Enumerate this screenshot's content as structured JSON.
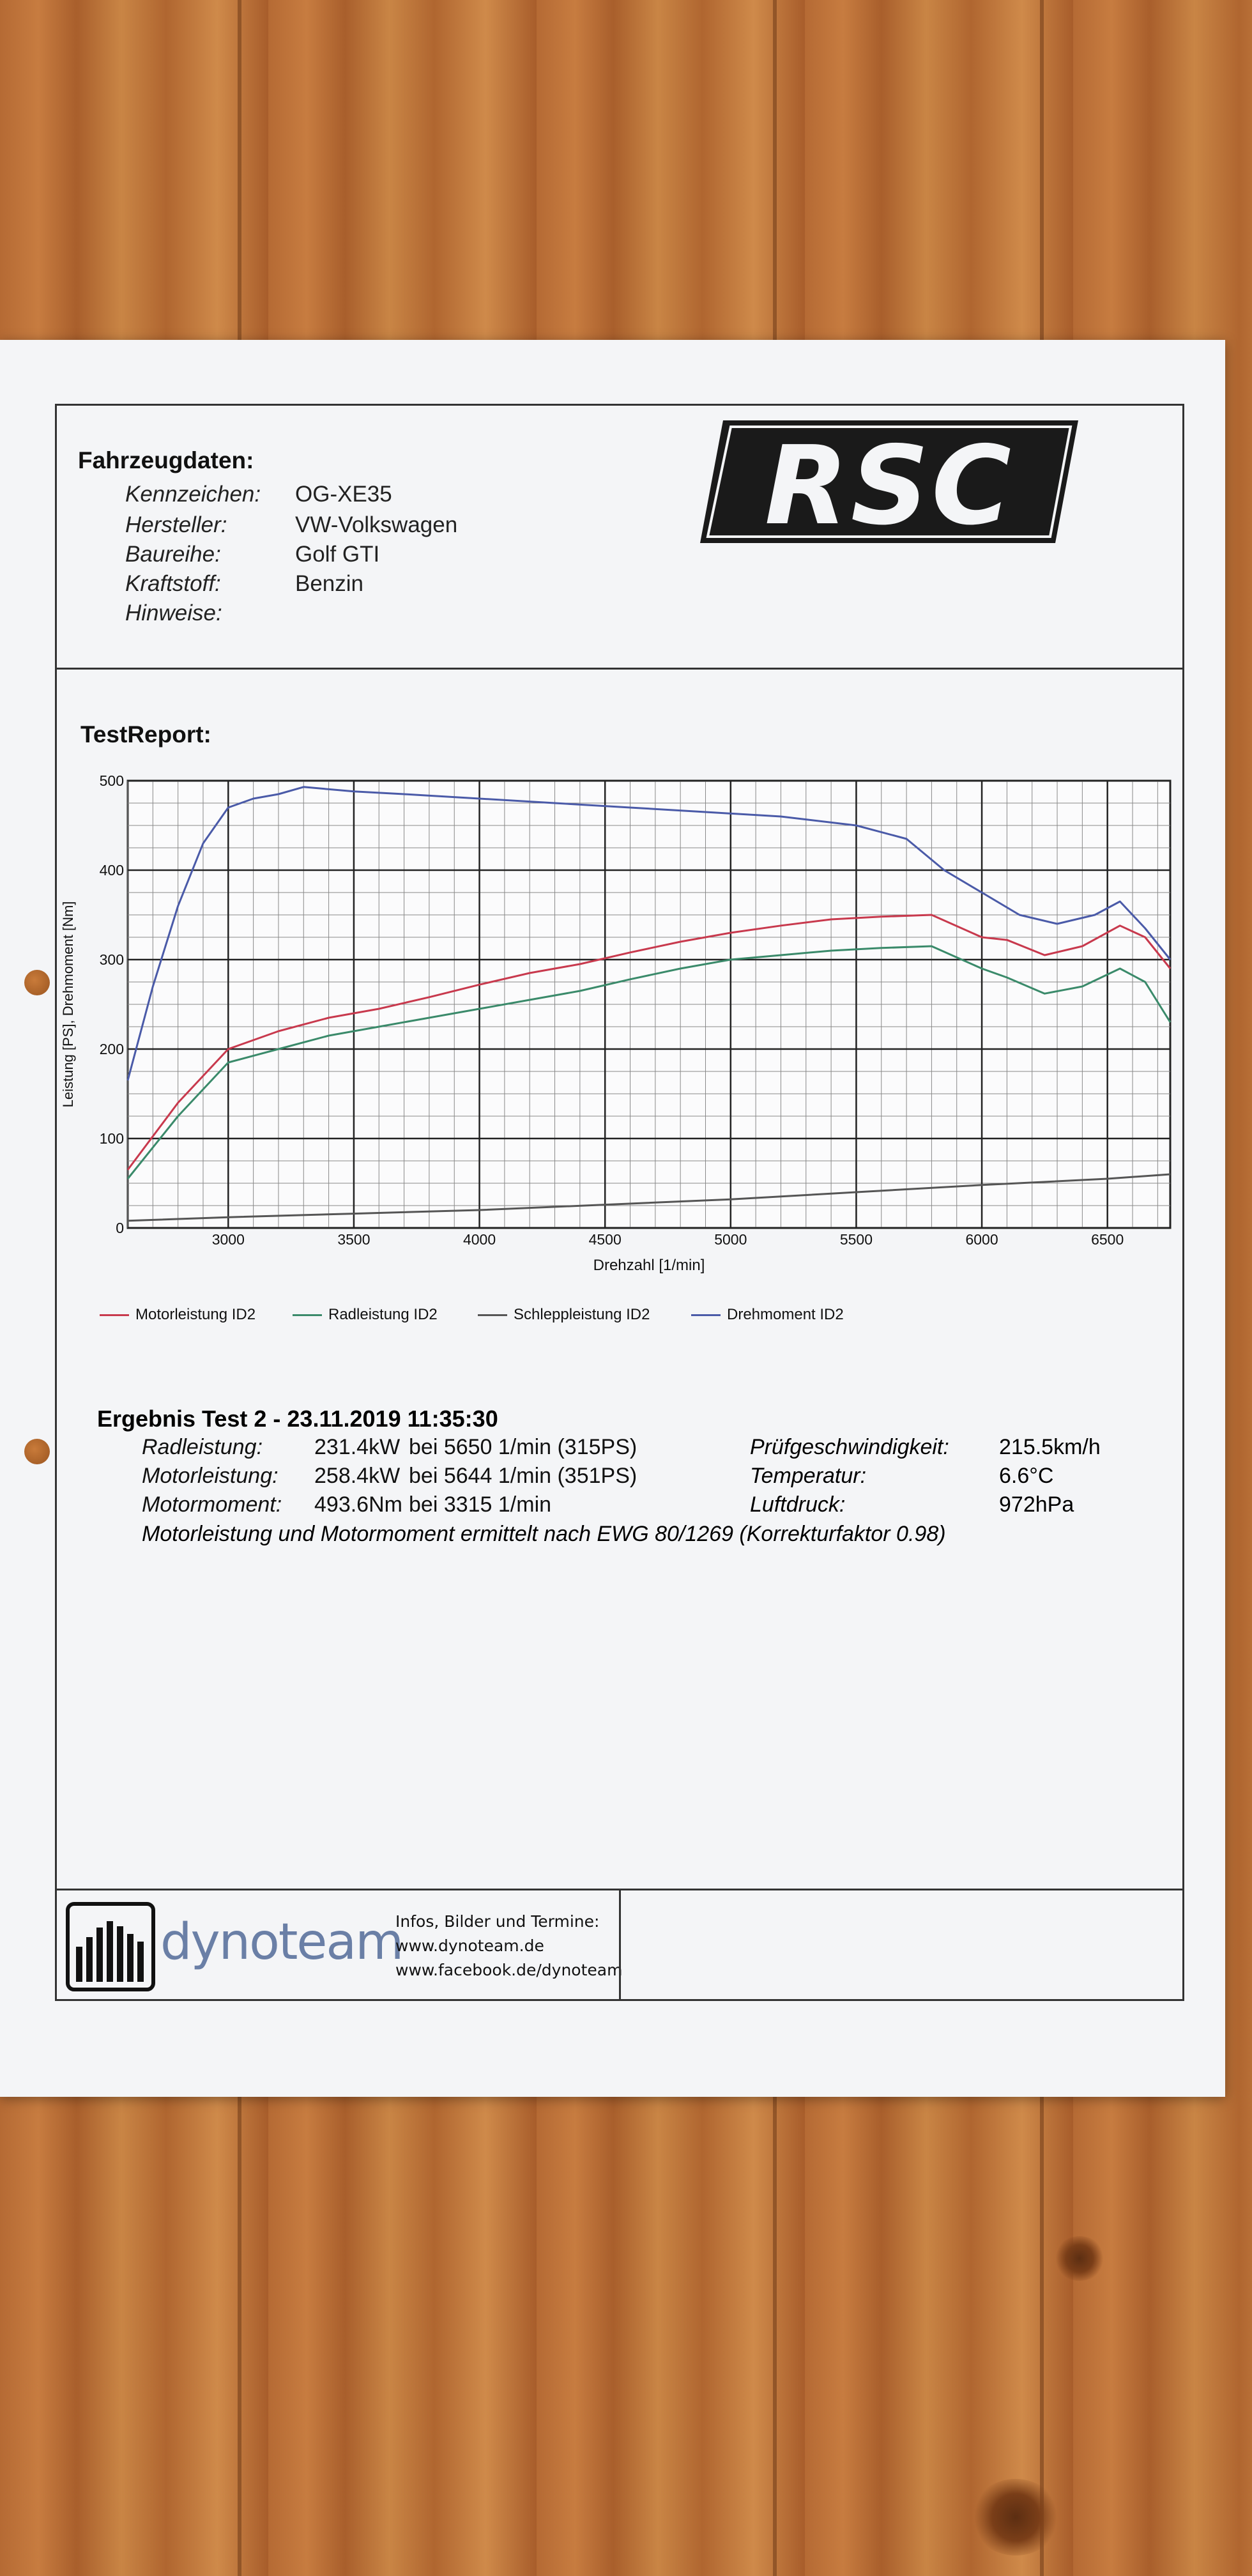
{
  "vehicle": {
    "heading": "Fahrzeugdaten:",
    "rows": [
      {
        "key": "Kennzeichen:",
        "value": "OG-XE35"
      },
      {
        "key": "Hersteller:",
        "value": "VW-Volkswagen"
      },
      {
        "key": "Baureihe:",
        "value": "Golf GTI"
      },
      {
        "key": "Kraftstoff:",
        "value": "Benzin"
      },
      {
        "key": "Hinweise:",
        "value": ""
      }
    ]
  },
  "brand_logo": "RSC",
  "report": {
    "heading": "TestReport:"
  },
  "chart_data": {
    "type": "line",
    "xlabel": "Drehzahl [1/min]",
    "ylabel": "Leistung [PS], Drehmoment [Nm]",
    "xlim": [
      2600,
      6750
    ],
    "ylim": [
      0,
      500
    ],
    "x_ticks": [
      3000,
      3500,
      4000,
      4500,
      5000,
      5500,
      6000,
      6500
    ],
    "y_ticks": [
      0,
      100,
      200,
      300,
      400,
      500
    ],
    "grid": true,
    "legend_position": "bottom",
    "series": [
      {
        "name": "Motorleistung ID2",
        "color": "#c8394d",
        "x": [
          2600,
          2800,
          3000,
          3200,
          3400,
          3600,
          3800,
          4000,
          4200,
          4400,
          4600,
          4800,
          5000,
          5200,
          5400,
          5600,
          5800,
          6000,
          6100,
          6250,
          6400,
          6550,
          6650,
          6750
        ],
        "y": [
          65,
          140,
          200,
          220,
          235,
          245,
          258,
          272,
          285,
          295,
          308,
          320,
          330,
          338,
          345,
          348,
          350,
          325,
          322,
          305,
          315,
          338,
          325,
          290
        ]
      },
      {
        "name": "Radleistung ID2",
        "color": "#3a8a6a",
        "x": [
          2600,
          2800,
          3000,
          3200,
          3400,
          3600,
          3800,
          4000,
          4200,
          4400,
          4600,
          4800,
          5000,
          5200,
          5400,
          5600,
          5800,
          6000,
          6100,
          6250,
          6400,
          6550,
          6650,
          6750
        ],
        "y": [
          55,
          125,
          185,
          200,
          215,
          225,
          235,
          245,
          255,
          265,
          278,
          290,
          300,
          305,
          310,
          313,
          315,
          290,
          280,
          262,
          270,
          290,
          275,
          230
        ]
      },
      {
        "name": "Schleppleistung ID2",
        "color": "#555555",
        "x": [
          2600,
          3000,
          3500,
          4000,
          4500,
          5000,
          5500,
          6000,
          6500,
          6750
        ],
        "y": [
          8,
          12,
          16,
          20,
          26,
          32,
          40,
          48,
          55,
          60
        ]
      },
      {
        "name": "Drehmoment ID2",
        "color": "#4a5aa8",
        "x": [
          2600,
          2700,
          2800,
          2900,
          3000,
          3100,
          3200,
          3300,
          3500,
          3700,
          4000,
          4300,
          4600,
          4900,
          5200,
          5500,
          5700,
          5850,
          6000,
          6150,
          6300,
          6450,
          6550,
          6650,
          6750
        ],
        "y": [
          165,
          270,
          360,
          430,
          470,
          480,
          485,
          493,
          488,
          485,
          480,
          475,
          470,
          465,
          460,
          450,
          435,
          400,
          375,
          350,
          340,
          350,
          365,
          335,
          300
        ]
      }
    ]
  },
  "results": {
    "title": "Ergebnis Test 2 - 23.11.2019 11:35:30",
    "rows": [
      {
        "key": "Radleistung:",
        "value": "231.4kW",
        "at": "bei 5650 1/min (315PS)"
      },
      {
        "key": "Motorleistung:",
        "value": "258.4kW",
        "at": "bei 5644 1/min (351PS)"
      },
      {
        "key": "Motormoment:",
        "value": "493.6Nm",
        "at": "bei 3315 1/min"
      }
    ],
    "conditions": [
      {
        "key": "Prüfgeschwindigkeit:",
        "value": "215.5km/h"
      },
      {
        "key": "Temperatur:",
        "value": "6.6°C"
      },
      {
        "key": "Luftdruck:",
        "value": "972hPa"
      }
    ],
    "note": "Motorleistung und Motormoment ermittelt nach EWG 80/1269 (Korrekturfaktor 0.98)"
  },
  "footer": {
    "brand": "dynoteam",
    "info_line1": "Infos, Bilder und Termine:",
    "info_line2": "www.dynoteam.de",
    "info_line3": "www.facebook.de/dynoteam"
  }
}
